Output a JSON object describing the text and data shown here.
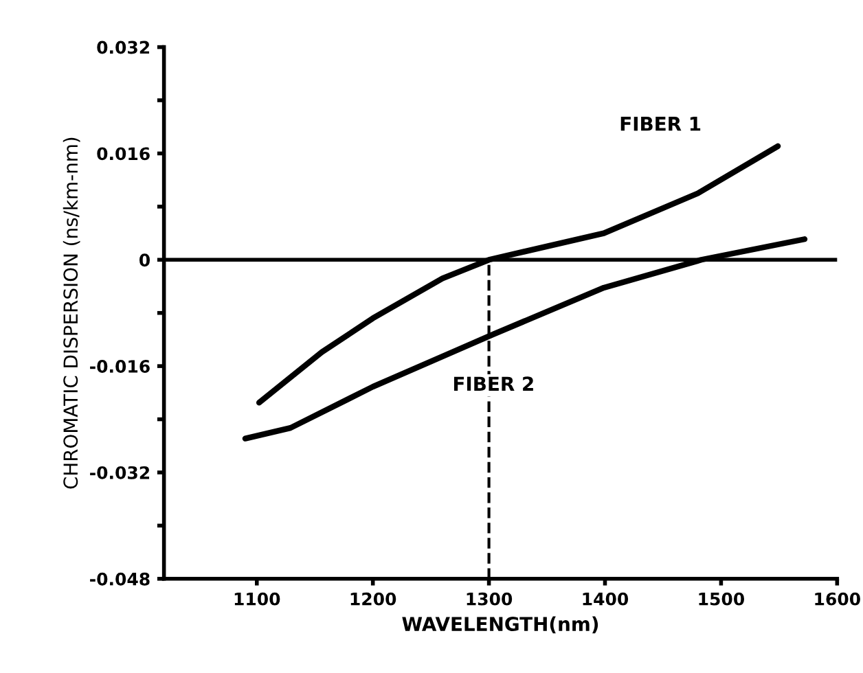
{
  "chart_data": {
    "type": "line",
    "xlabel": "WAVELENGTH(nm)",
    "ylabel": "CHROMATIC DISPERSION (ns/km-nm)",
    "series": [
      {
        "name": "FIBER 1",
        "color": "#000000",
        "x": [
          1102,
          1156,
          1200,
          1260,
          1300,
          1399,
          1480,
          1549
        ],
        "values": [
          -0.0215,
          -0.0139,
          -0.0088,
          -0.0028,
          0.0,
          0.004,
          0.01,
          0.0171
        ]
      },
      {
        "name": "FIBER 2",
        "color": "#000000",
        "x": [
          1090,
          1129,
          1200,
          1304,
          1399,
          1483,
          1572
        ],
        "values": [
          -0.0269,
          -0.0253,
          -0.0191,
          -0.0112,
          -0.0042,
          0.0,
          0.0031
        ]
      }
    ],
    "xlim": [
      1020,
      1600
    ],
    "xticks": [
      1100,
      1200,
      1300,
      1400,
      1500,
      1600
    ],
    "ylim": [
      -0.048,
      0.032
    ],
    "yticks": [
      -0.048,
      {
        "value": -0.04,
        "label": null
      },
      -0.032,
      {
        "value": -0.024,
        "label": null
      },
      -0.016,
      {
        "value": -0.008,
        "label": null
      },
      0,
      {
        "value": 0.008,
        "label": null
      },
      0.016,
      {
        "value": 0.024,
        "label": null
      },
      0.032
    ],
    "ref_lines": [
      {
        "axis": "y",
        "value": 0,
        "color": "#000000",
        "line_style": "solid"
      },
      {
        "axis": "x",
        "value": 1300,
        "color": "#000000",
        "line_style": "dashed"
      }
    ],
    "grid": false,
    "legend": false,
    "marker": "none",
    "line_style": "solid"
  }
}
